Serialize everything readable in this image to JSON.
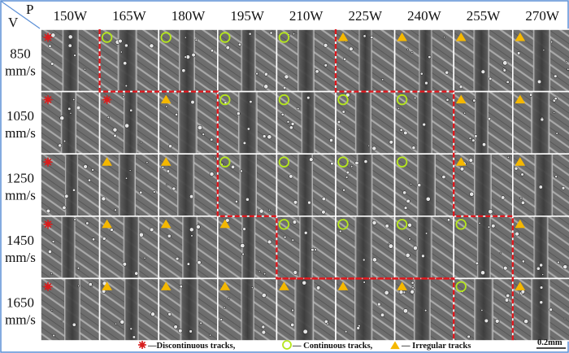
{
  "header": {
    "corner_v": "V",
    "corner_p": "P",
    "powers": [
      "150W",
      "165W",
      "180W",
      "195W",
      "210W",
      "225W",
      "240W",
      "255W",
      "270W"
    ],
    "speeds": [
      {
        "value": "850",
        "unit": "mm/s"
      },
      {
        "value": "1050",
        "unit": "mm/s"
      },
      {
        "value": "1250",
        "unit": "mm/s"
      },
      {
        "value": "1450",
        "unit": "mm/s"
      },
      {
        "value": "1650",
        "unit": "mm/s"
      }
    ]
  },
  "grid": {
    "markers": [
      [
        "discontinuous",
        "continuous",
        "continuous",
        "continuous",
        "continuous",
        "irregular",
        "irregular",
        "irregular",
        "irregular"
      ],
      [
        "discontinuous",
        "discontinuous",
        "irregular",
        "continuous",
        "continuous",
        "continuous",
        "continuous",
        "irregular",
        "irregular"
      ],
      [
        "discontinuous",
        "irregular",
        "irregular",
        "continuous",
        "continuous",
        "continuous",
        "continuous",
        "irregular",
        "irregular"
      ],
      [
        "discontinuous",
        "irregular",
        "irregular",
        "irregular",
        "continuous",
        "continuous",
        "continuous",
        "continuous",
        "irregular"
      ],
      [
        "discontinuous",
        "irregular",
        "irregular",
        "irregular",
        "irregular",
        "irregular",
        "irregular",
        "continuous",
        "irregular"
      ]
    ]
  },
  "legend": {
    "discontinuous_label": "—Discontinuous tracks,",
    "continuous_label": "— Continuous tracks,",
    "irregular_label": "— Irregular tracks"
  },
  "scale_bar": {
    "label": "0.2mm"
  },
  "colors": {
    "discontinuous": "#d81e1e",
    "continuous": "#b5e61d",
    "irregular": "#f5b800",
    "boundary": "#e0191f",
    "frame": "#5b8fd6"
  }
}
